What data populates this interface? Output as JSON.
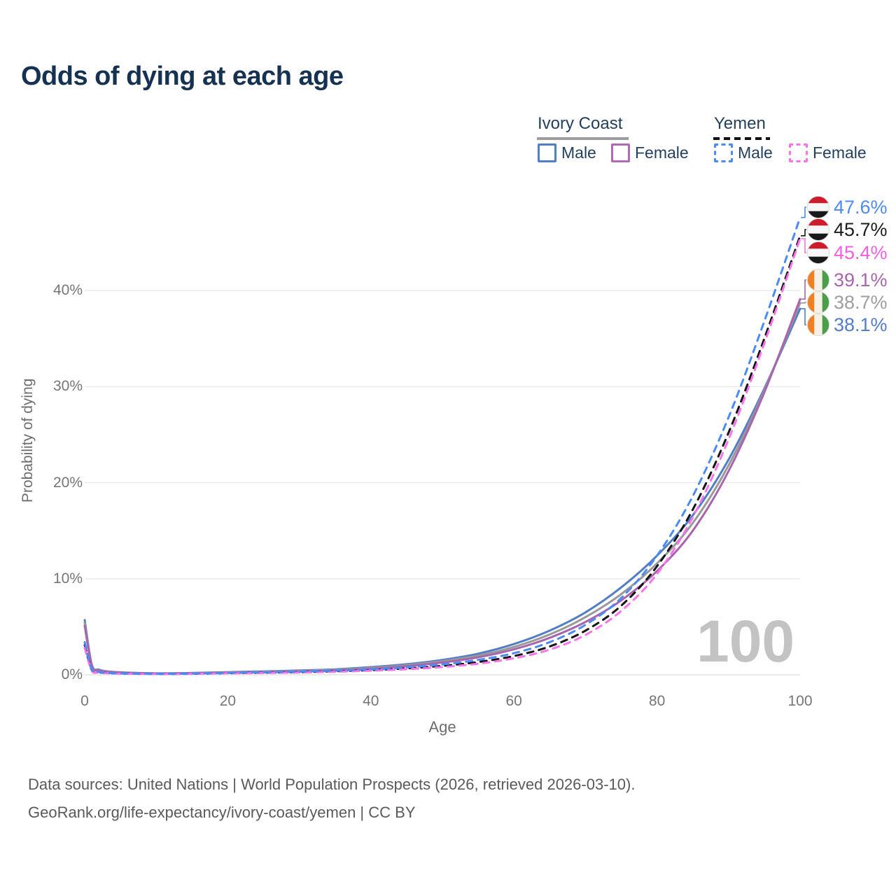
{
  "title": "Odds of dying at each age",
  "legend": {
    "groups": [
      {
        "label": "Ivory Coast",
        "line_style": "solid",
        "line_color": "#9c9c9c",
        "items": [
          {
            "label": "Male",
            "color": "#527ec6",
            "dash": false
          },
          {
            "label": "Female",
            "color": "#b06ab4",
            "dash": false
          }
        ]
      },
      {
        "label": "Yemen",
        "line_style": "dashed",
        "line_color": "#111111",
        "items": [
          {
            "label": "Male",
            "color": "#4b8bf5",
            "dash": true
          },
          {
            "label": "Female",
            "color": "#f973ea",
            "dash": true
          }
        ]
      }
    ]
  },
  "axes": {
    "x_label": "Age",
    "y_label": "Probability of dying",
    "x_ticks": [
      "0",
      "20",
      "40",
      "60",
      "80",
      "100"
    ],
    "y_ticks": [
      "0%",
      "10%",
      "20%",
      "30%",
      "40%"
    ]
  },
  "watermark": "100",
  "footer": {
    "line1": "Data sources: United Nations | World Population Prospects (2026, retrieved 2026-03-10).",
    "line2": "GeoRank.org/life-expectancy/ivory-coast/yemen | CC BY"
  },
  "chart_data": {
    "type": "line",
    "title": "Odds of dying at each age",
    "xlabel": "Age",
    "ylabel": "Probability of dying",
    "x_range": [
      0,
      100
    ],
    "y_range_percent": [
      0,
      48
    ],
    "grid": true,
    "legend_position": "top-right",
    "ages": [
      0,
      1,
      2,
      3,
      5,
      8,
      12,
      16,
      20,
      25,
      30,
      35,
      40,
      45,
      50,
      55,
      60,
      65,
      70,
      75,
      80,
      85,
      90,
      95,
      100
    ],
    "series": [
      {
        "name": "Ivory Coast Male",
        "country": "Ivory Coast",
        "sex": "male",
        "color": "#527ec6",
        "label_color": "#527ec6",
        "dash": false,
        "flag": "ivory-coast",
        "end_label": "38.1%",
        "label_row": 5,
        "values": [
          5.7,
          1.05,
          0.55,
          0.38,
          0.26,
          0.18,
          0.16,
          0.21,
          0.28,
          0.36,
          0.45,
          0.57,
          0.8,
          1.1,
          1.55,
          2.2,
          3.2,
          4.6,
          6.5,
          9.1,
          12.4,
          16.6,
          22.4,
          29.8,
          38.1
        ]
      },
      {
        "name": "Ivory Coast Both sexes",
        "country": "Ivory Coast",
        "sex": "both",
        "color": "#999999",
        "label_color": "#9e9e9e",
        "dash": false,
        "flag": "ivory-coast",
        "end_label": "38.7%",
        "label_row": 4,
        "values": [
          5.4,
          0.98,
          0.5,
          0.35,
          0.24,
          0.16,
          0.14,
          0.19,
          0.25,
          0.32,
          0.4,
          0.51,
          0.72,
          1.0,
          1.42,
          2.0,
          2.9,
          4.2,
          6.0,
          8.4,
          11.6,
          15.8,
          21.8,
          29.6,
          38.7
        ]
      },
      {
        "name": "Ivory Coast Female",
        "country": "Ivory Coast",
        "sex": "female",
        "color": "#a964ae",
        "label_color": "#a964ae",
        "dash": false,
        "flag": "ivory-coast",
        "end_label": "39.1%",
        "label_row": 3,
        "values": [
          5.1,
          0.92,
          0.47,
          0.32,
          0.22,
          0.15,
          0.13,
          0.17,
          0.22,
          0.28,
          0.35,
          0.45,
          0.64,
          0.9,
          1.28,
          1.82,
          2.65,
          3.85,
          5.5,
          7.75,
          10.8,
          15.0,
          21.2,
          29.4,
          39.1
        ]
      },
      {
        "name": "Yemen Both sexes",
        "country": "Yemen",
        "sex": "both",
        "color": "#151515",
        "label_color": "#1c1c1c",
        "dash": true,
        "flag": "yemen",
        "end_label": "45.7%",
        "label_row": 1,
        "values": [
          3.1,
          0.47,
          0.27,
          0.19,
          0.13,
          0.1,
          0.09,
          0.12,
          0.17,
          0.22,
          0.28,
          0.37,
          0.49,
          0.67,
          0.93,
          1.33,
          1.95,
          2.95,
          4.6,
          7.2,
          11.3,
          17.2,
          25.2,
          35.0,
          45.7
        ]
      },
      {
        "name": "Yemen Female",
        "country": "Yemen",
        "sex": "female",
        "color": "#f973ea",
        "label_color": "#f35fe0",
        "dash": true,
        "flag": "yemen",
        "end_label": "45.4%",
        "label_row": 2,
        "values": [
          2.8,
          0.43,
          0.25,
          0.17,
          0.12,
          0.09,
          0.08,
          0.11,
          0.15,
          0.19,
          0.24,
          0.32,
          0.43,
          0.58,
          0.81,
          1.16,
          1.72,
          2.62,
          4.15,
          6.65,
          10.5,
          16.4,
          24.5,
          34.5,
          45.4
        ]
      },
      {
        "name": "Yemen Male",
        "country": "Yemen",
        "sex": "male",
        "color": "#4b8bf5",
        "label_color": "#4b8bf5",
        "dash": true,
        "flag": "yemen",
        "end_label": "47.6%",
        "label_row": 0,
        "values": [
          3.4,
          0.52,
          0.3,
          0.21,
          0.15,
          0.11,
          0.1,
          0.14,
          0.2,
          0.26,
          0.33,
          0.43,
          0.57,
          0.78,
          1.08,
          1.55,
          2.25,
          3.4,
          5.2,
          8.0,
          12.4,
          18.6,
          26.8,
          36.8,
          47.6
        ]
      }
    ]
  }
}
